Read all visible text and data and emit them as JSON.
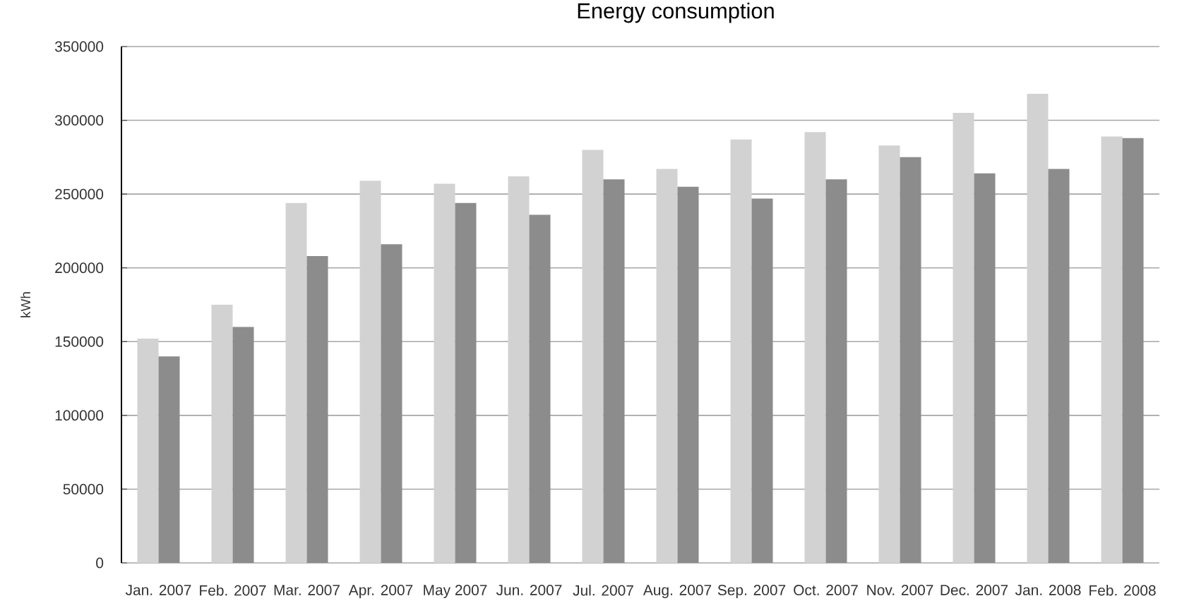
{
  "chart_data": {
    "type": "bar",
    "title": "Energy consumption",
    "ylabel": "kWh",
    "categories": [
      "Jan. 2007",
      "Feb. 2007",
      "Mar. 2007",
      "Apr. 2007",
      "May 2007",
      "Jun. 2007",
      "Jul. 2007",
      "Aug. 2007",
      "Sep. 2007",
      "Oct. 2007",
      "Nov. 2007",
      "Dec. 2007",
      "Jan. 2008",
      "Feb. 2008"
    ],
    "series": [
      {
        "color": "#d2d2d2",
        "values": [
          152000,
          175000,
          244000,
          259000,
          257000,
          262000,
          280000,
          267000,
          287000,
          292000,
          283000,
          305000,
          318000,
          289000
        ]
      },
      {
        "color": "#8c8c8c",
        "values": [
          140000,
          160000,
          208000,
          216000,
          244000,
          236000,
          260000,
          255000,
          247000,
          260000,
          275000,
          264000,
          267000,
          288000
        ]
      }
    ],
    "ylim": [
      0,
      350000
    ],
    "yticks": [
      0,
      50000,
      100000,
      150000,
      200000,
      250000,
      300000,
      350000
    ],
    "grid": "y"
  }
}
